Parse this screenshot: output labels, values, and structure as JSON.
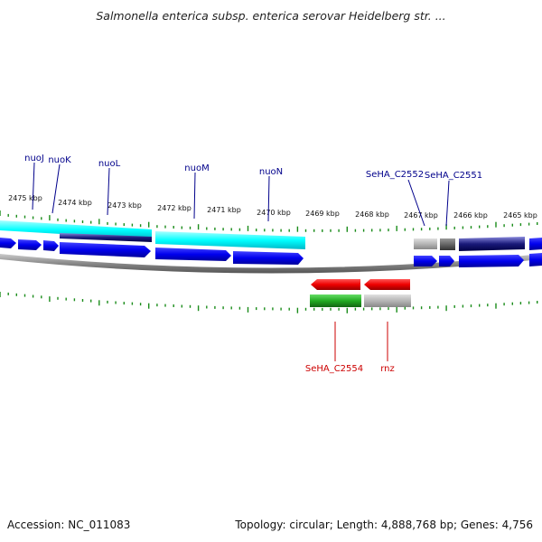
{
  "title": "Salmonella enterica subsp. enterica serovar Heidelberg str. ...",
  "footer": {
    "accession": "Accession: NC_011083",
    "summary": "Topology: circular; Length: 4,888,768 bp; Genes: 4,756"
  },
  "colors": {
    "background": "#ffffff",
    "forward_cds": "#0000ee",
    "forward_label": "#00008b",
    "forward_band": "#00ffff",
    "reverse_cds": "#ee0000",
    "reverse_label": "#cc0000",
    "reverse_band": "#22aa22",
    "backbone": "#888888",
    "ticks": "#1a8c1a"
  },
  "ruler_labels": [
    "2475 kbp",
    "2474 kbp",
    "2473 kbp",
    "2472 kbp",
    "2471 kbp",
    "2470 kbp",
    "2469 kbp",
    "2468 kbp",
    "2467 kbp",
    "2466 kbp",
    "2465 kbp"
  ],
  "top_genes": [
    "nuoJ",
    "nuoK",
    "nuoL",
    "nuoM",
    "nuoN",
    "SeHA_C2552",
    "SeHA_C2551"
  ],
  "bottom_genes": [
    "SeHA_C2554",
    "rnz"
  ]
}
